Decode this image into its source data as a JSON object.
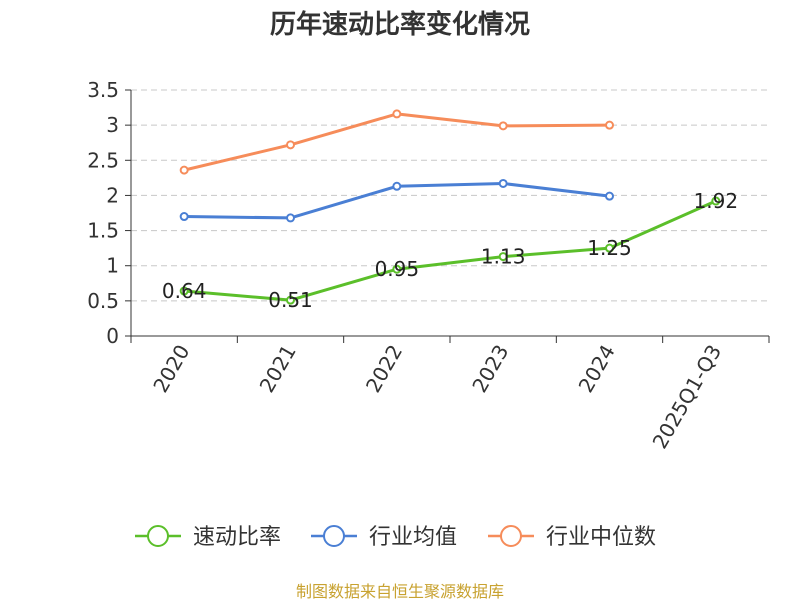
{
  "chart_data": {
    "type": "line",
    "title": "历年速动比率变化情况",
    "categories": [
      "2020",
      "2021",
      "2022",
      "2023",
      "2024",
      "2025Q1-Q3"
    ],
    "ylim": [
      0,
      3.5
    ],
    "yticks": [
      "0",
      "0.5",
      "1",
      "1.5",
      "2",
      "2.5",
      "3",
      "3.5"
    ],
    "grid": true,
    "legend_position": "bottom",
    "series": [
      {
        "name": "速动比率",
        "color": "#5bbf2a",
        "values": [
          0.64,
          0.51,
          0.95,
          1.13,
          1.25,
          1.92
        ],
        "labels": [
          "0.64",
          "0.51",
          "0.95",
          "1.13",
          "1.25",
          "1.92"
        ]
      },
      {
        "name": "行业均值",
        "color": "#4a7fd4",
        "values": [
          1.7,
          1.68,
          2.13,
          2.17,
          1.99,
          null
        ]
      },
      {
        "name": "行业中位数",
        "color": "#f68c5a",
        "values": [
          2.36,
          2.72,
          3.16,
          2.99,
          3.0,
          null
        ]
      }
    ]
  },
  "footer": {
    "source": "制图数据来自恒生聚源数据库"
  }
}
